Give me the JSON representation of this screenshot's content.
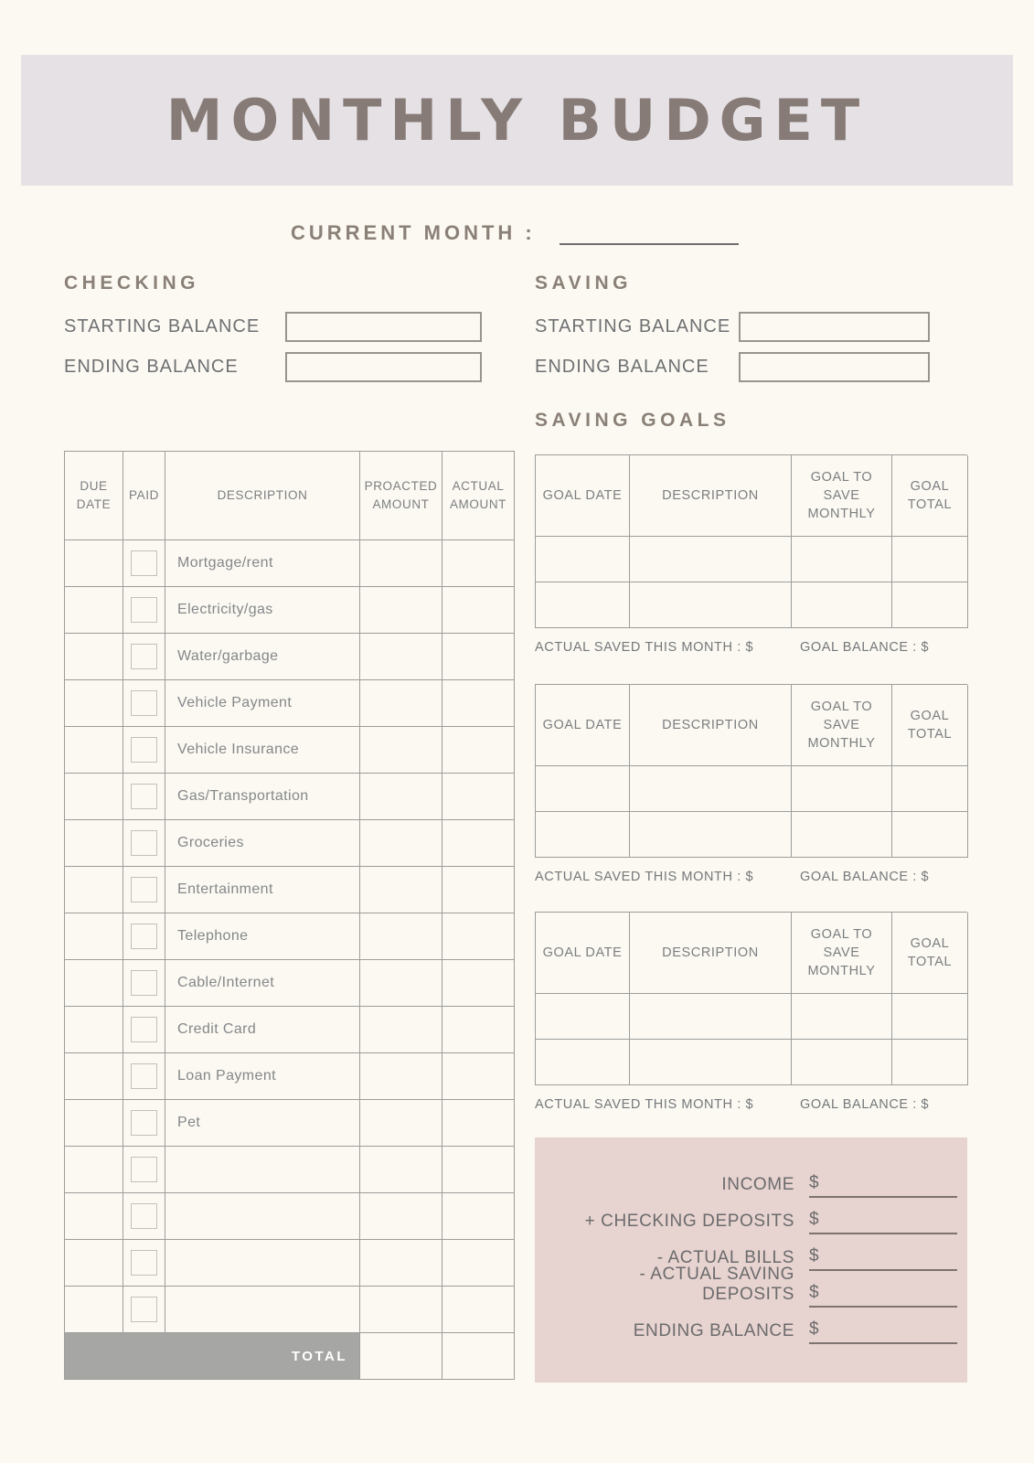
{
  "banner": {
    "title": "MONTHLY BUDGET"
  },
  "current_month": {
    "label": "CURRENT MONTH :",
    "value": ""
  },
  "checking": {
    "heading": "CHECKING",
    "starting_label": "STARTING BALANCE",
    "starting_value": "",
    "ending_label": "ENDING BALANCE",
    "ending_value": ""
  },
  "saving": {
    "heading": "SAVING",
    "starting_label": "STARTING BALANCE",
    "starting_value": "",
    "ending_label": "ENDING BALANCE",
    "ending_value": ""
  },
  "expenses": {
    "headers": {
      "due_date": "DUE DATE",
      "paid": "PAID",
      "description": "DESCRIPTION",
      "projected": "PROACTED AMOUNT",
      "actual": "ACTUAL AMOUNT"
    },
    "rows": [
      {
        "due_date": "",
        "paid": false,
        "description": "Mortgage/rent",
        "projected": "",
        "actual": ""
      },
      {
        "due_date": "",
        "paid": false,
        "description": "Electricity/gas",
        "projected": "",
        "actual": ""
      },
      {
        "due_date": "",
        "paid": false,
        "description": "Water/garbage",
        "projected": "",
        "actual": ""
      },
      {
        "due_date": "",
        "paid": false,
        "description": "Vehicle Payment",
        "projected": "",
        "actual": ""
      },
      {
        "due_date": "",
        "paid": false,
        "description": "Vehicle Insurance",
        "projected": "",
        "actual": ""
      },
      {
        "due_date": "",
        "paid": false,
        "description": "Gas/Transportation",
        "projected": "",
        "actual": ""
      },
      {
        "due_date": "",
        "paid": false,
        "description": "Groceries",
        "projected": "",
        "actual": ""
      },
      {
        "due_date": "",
        "paid": false,
        "description": "Entertainment",
        "projected": "",
        "actual": ""
      },
      {
        "due_date": "",
        "paid": false,
        "description": "Telephone",
        "projected": "",
        "actual": ""
      },
      {
        "due_date": "",
        "paid": false,
        "description": "Cable/Internet",
        "projected": "",
        "actual": ""
      },
      {
        "due_date": "",
        "paid": false,
        "description": "Credit Card",
        "projected": "",
        "actual": ""
      },
      {
        "due_date": "",
        "paid": false,
        "description": "Loan Payment",
        "projected": "",
        "actual": ""
      },
      {
        "due_date": "",
        "paid": false,
        "description": "Pet",
        "projected": "",
        "actual": ""
      },
      {
        "due_date": "",
        "paid": false,
        "description": "",
        "projected": "",
        "actual": ""
      },
      {
        "due_date": "",
        "paid": false,
        "description": "",
        "projected": "",
        "actual": ""
      },
      {
        "due_date": "",
        "paid": false,
        "description": "",
        "projected": "",
        "actual": ""
      },
      {
        "due_date": "",
        "paid": false,
        "description": "",
        "projected": "",
        "actual": ""
      }
    ],
    "total": {
      "label": "TOTAL",
      "projected": "",
      "actual": ""
    }
  },
  "saving_goals": {
    "heading": "SAVING GOALS",
    "headers": {
      "goal_date": "GOAL DATE",
      "description": "DESCRIPTION",
      "monthly": "GOAL TO SAVE MONTHLY",
      "total": "GOAL TOTAL"
    },
    "tables": [
      {
        "rows": [
          {
            "goal_date": "",
            "description": "",
            "monthly": "",
            "total": ""
          },
          {
            "goal_date": "",
            "description": "",
            "monthly": "",
            "total": ""
          }
        ],
        "actual_saved_label": "ACTUAL SAVED THIS MONTH : $",
        "goal_balance_label": "GOAL BALANCE : $",
        "actual_saved_value": "",
        "goal_balance_value": ""
      },
      {
        "rows": [
          {
            "goal_date": "",
            "description": "",
            "monthly": "",
            "total": ""
          },
          {
            "goal_date": "",
            "description": "",
            "monthly": "",
            "total": ""
          }
        ],
        "actual_saved_label": "ACTUAL SAVED THIS MONTH : $",
        "goal_balance_label": "GOAL BALANCE : $",
        "actual_saved_value": "",
        "goal_balance_value": ""
      },
      {
        "rows": [
          {
            "goal_date": "",
            "description": "",
            "monthly": "",
            "total": ""
          },
          {
            "goal_date": "",
            "description": "",
            "monthly": "",
            "total": ""
          }
        ],
        "actual_saved_label": "ACTUAL SAVED THIS MONTH : $",
        "goal_balance_label": "GOAL BALANCE : $",
        "actual_saved_value": "",
        "goal_balance_value": ""
      }
    ],
    "table_tops": [
      497,
      748,
      997
    ]
  },
  "summary": {
    "currency_symbol": "$",
    "rows": [
      {
        "label": "INCOME",
        "value": ""
      },
      {
        "label": "+ CHECKING DEPOSITS",
        "value": ""
      },
      {
        "label": "- ACTUAL BILLS",
        "value": ""
      },
      {
        "label": "- ACTUAL SAVING DEPOSITS",
        "value": ""
      },
      {
        "label": "ENDING BALANCE",
        "value": ""
      }
    ]
  },
  "colors": {
    "page_bg": "#fbf9f2",
    "banner_bg": "#e5e1e4",
    "title_text": "#877b77",
    "heading_text": "#8a8077",
    "table_border": "#9d9d9b",
    "total_row_bg": "#a6a6a4",
    "summary_bg": "#e7d3cf"
  }
}
